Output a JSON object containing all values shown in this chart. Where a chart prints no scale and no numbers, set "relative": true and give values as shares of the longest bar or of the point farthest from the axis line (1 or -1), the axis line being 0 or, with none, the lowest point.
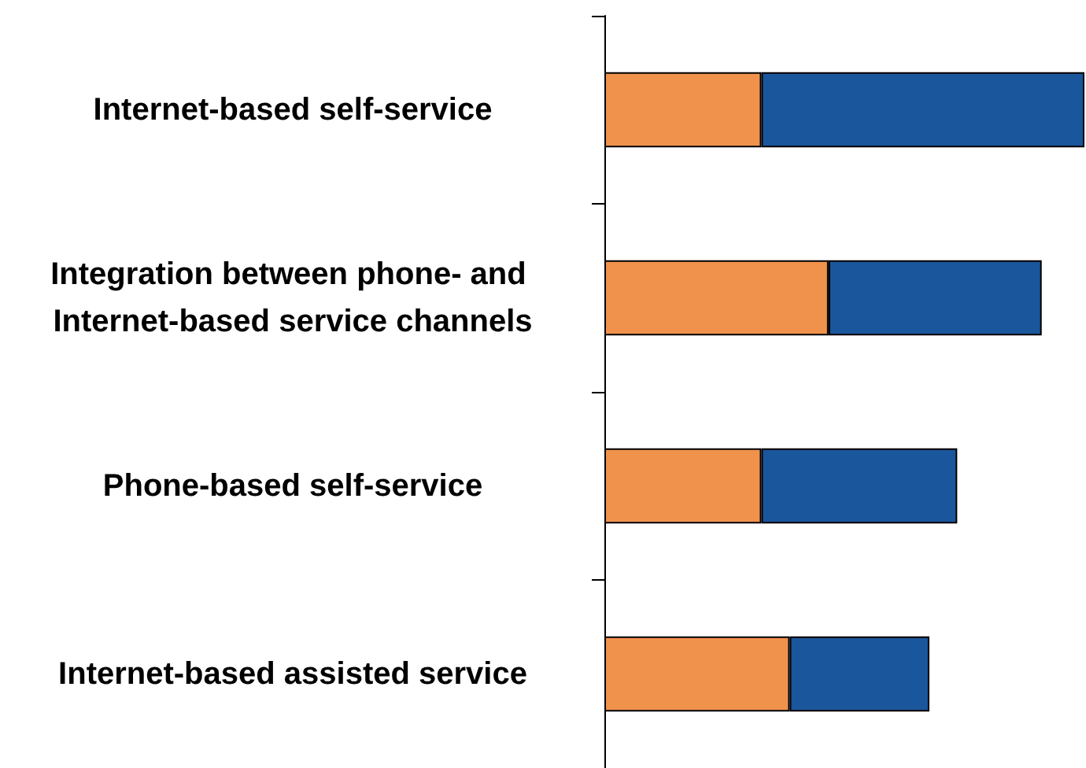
{
  "chart_data": {
    "type": "bar",
    "orientation": "horizontal",
    "stacked": true,
    "relative": true,
    "categories": [
      "Internet-based self-service",
      "Integration between phone- and Internet-based service channels",
      "Phone-based self-service",
      "Internet-based assisted service"
    ],
    "series": [
      {
        "color": "#f0924c",
        "values": [
          0.327,
          0.467,
          0.327,
          0.386
        ]
      },
      {
        "color": "#1a569c",
        "values": [
          0.673,
          0.444,
          0.408,
          0.291
        ]
      }
    ]
  }
}
